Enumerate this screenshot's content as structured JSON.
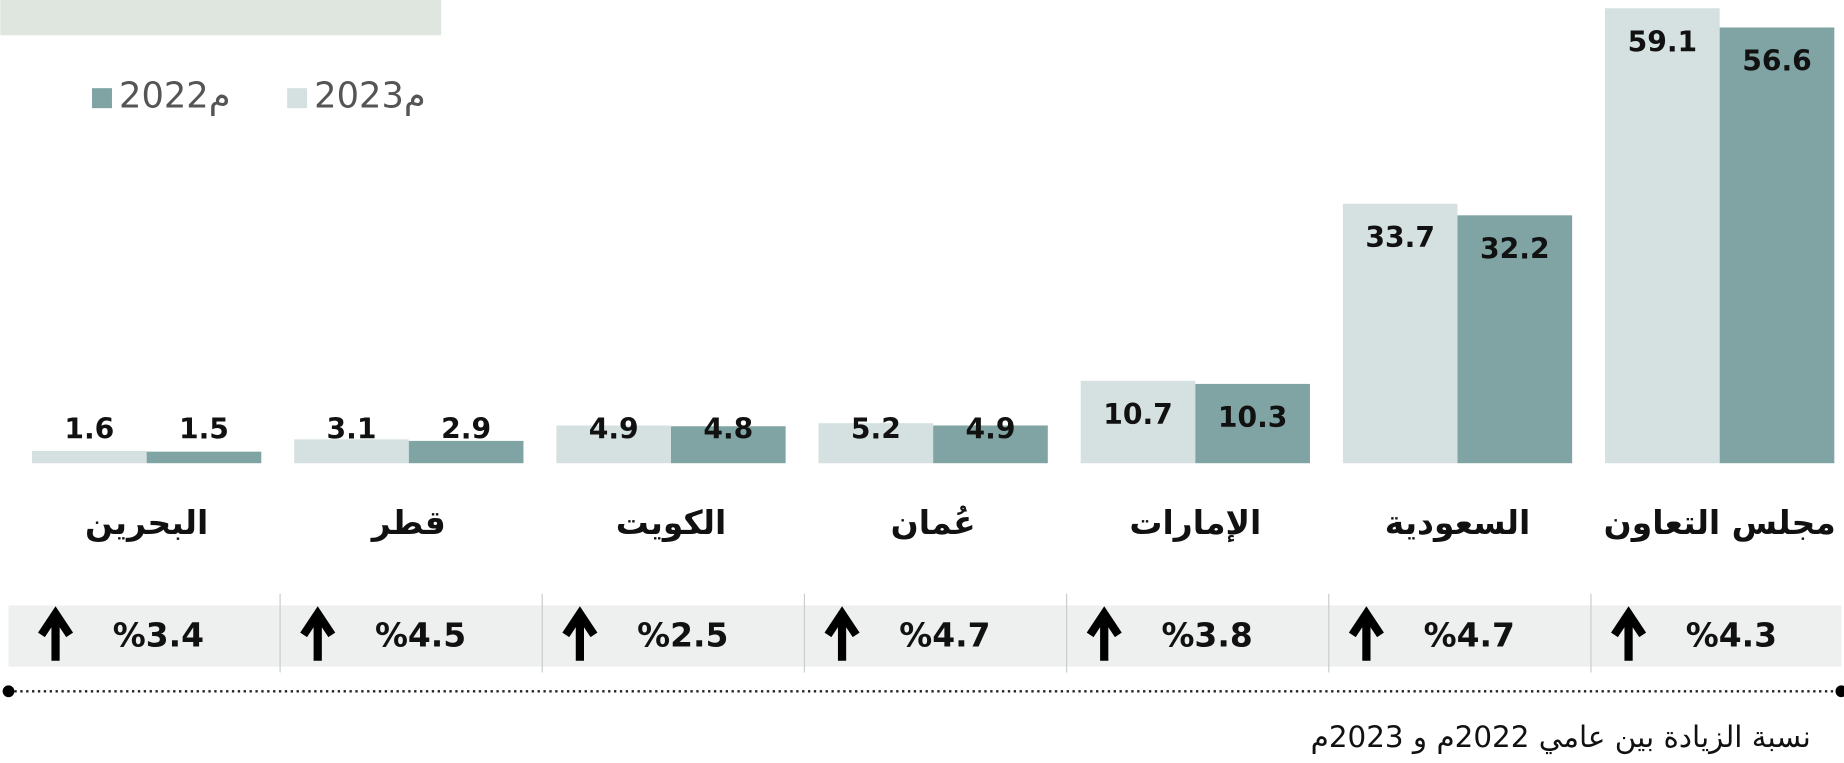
{
  "chart_data": {
    "type": "bar",
    "categories": [
      "مجلس التعاون",
      "السعودية",
      "الإمارات",
      "عُمان",
      "الكويت",
      "قطر",
      "البحرين"
    ],
    "series": [
      {
        "name": "2023م",
        "color": "#d5e1e0",
        "values": [
          59.1,
          33.7,
          10.7,
          5.2,
          4.9,
          3.1,
          1.6
        ]
      },
      {
        "name": "2022م",
        "color": "#7fa4a3",
        "values": [
          56.6,
          32.2,
          10.3,
          4.9,
          4.8,
          2.9,
          1.5
        ]
      }
    ],
    "increase_labels": [
      "%4.3",
      "%4.7",
      "%3.8",
      "%4.7",
      "%2.5",
      "%4.5",
      "%3.4"
    ],
    "footnote": "نسبة الزيادة بين عامي 2022م و 2023م"
  }
}
